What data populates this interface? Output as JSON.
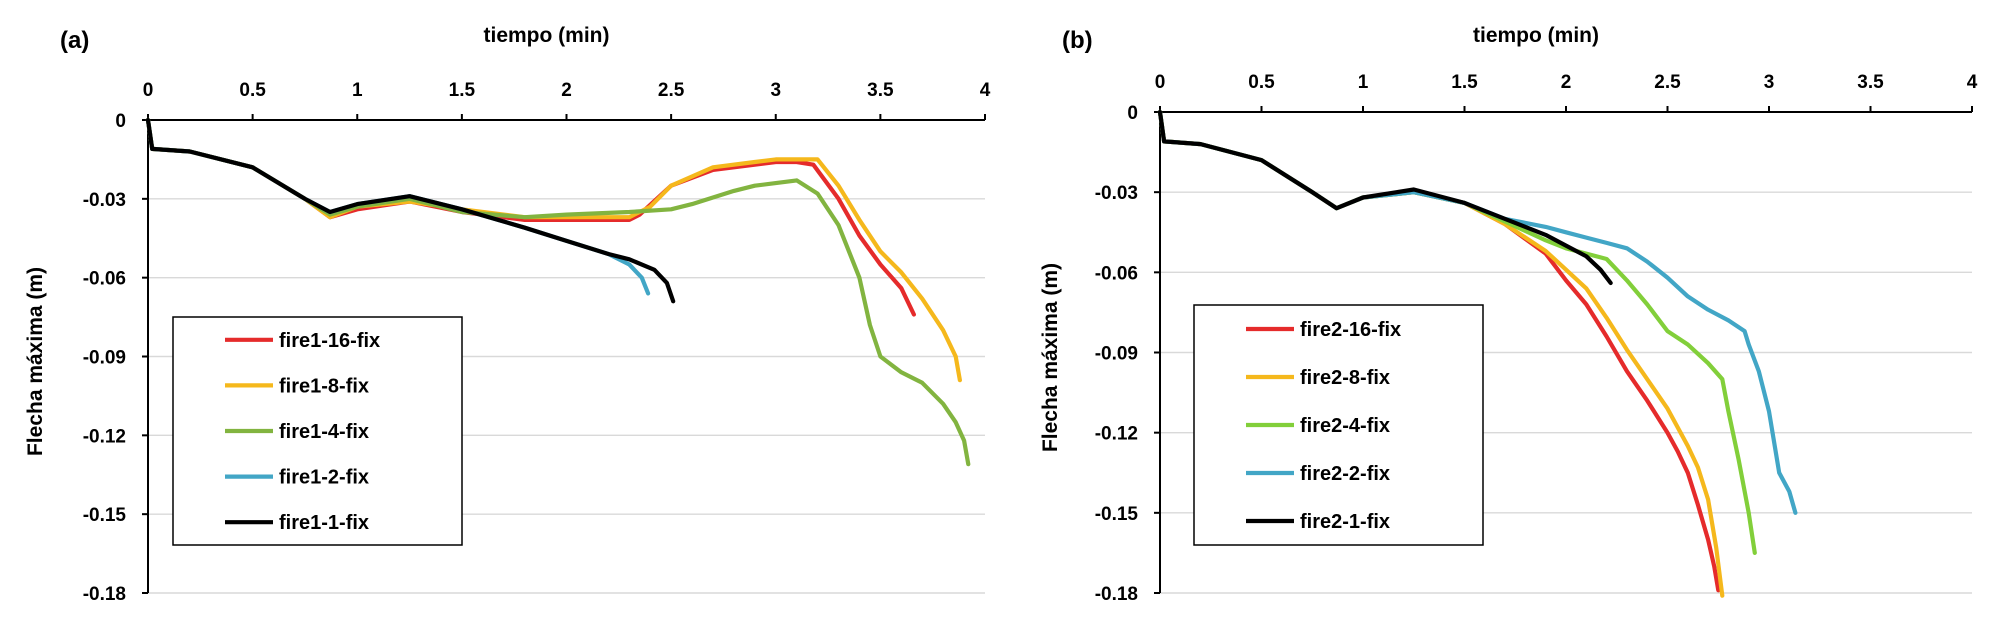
{
  "chart_data": [
    {
      "type": "line",
      "panel": "(a)",
      "xlabel": "tiempo (min)",
      "ylabel": "Flecha máxima (m)",
      "xlim": [
        0,
        4
      ],
      "ylim": [
        -0.18,
        0
      ],
      "xticks": [
        "0",
        "0.5",
        "1",
        "1.5",
        "2",
        "2.5",
        "3",
        "3.5",
        "4"
      ],
      "yticks": [
        "0",
        "-0.03",
        "-0.06",
        "-0.09",
        "-0.12",
        "-0.15",
        "-0.18"
      ],
      "grid": "horizontal",
      "legend": "bottom-left",
      "series": [
        {
          "name": "fire1-16-fix",
          "color": "#e52b2b",
          "x": [
            0,
            0.02,
            0.2,
            0.5,
            0.75,
            0.87,
            1.0,
            1.25,
            1.5,
            1.8,
            2.1,
            2.3,
            2.35,
            2.5,
            2.7,
            2.9,
            3.0,
            3.1,
            3.18,
            3.3,
            3.4,
            3.5,
            3.6,
            3.66
          ],
          "y": [
            0,
            -0.011,
            -0.012,
            -0.018,
            -0.03,
            -0.037,
            -0.034,
            -0.031,
            -0.035,
            -0.038,
            -0.038,
            -0.038,
            -0.036,
            -0.025,
            -0.019,
            -0.017,
            -0.016,
            -0.016,
            -0.017,
            -0.03,
            -0.044,
            -0.055,
            -0.064,
            -0.074
          ]
        },
        {
          "name": "fire1-8-fix",
          "color": "#f5b81c",
          "x": [
            0,
            0.02,
            0.2,
            0.5,
            0.75,
            0.87,
            1.0,
            1.25,
            1.5,
            1.8,
            2.1,
            2.3,
            2.4,
            2.5,
            2.7,
            2.9,
            3.0,
            3.1,
            3.2,
            3.3,
            3.4,
            3.5,
            3.6,
            3.7,
            3.8,
            3.86,
            3.88
          ],
          "y": [
            0,
            -0.011,
            -0.012,
            -0.018,
            -0.03,
            -0.037,
            -0.033,
            -0.031,
            -0.034,
            -0.037,
            -0.037,
            -0.037,
            -0.033,
            -0.025,
            -0.018,
            -0.016,
            -0.015,
            -0.015,
            -0.015,
            -0.025,
            -0.038,
            -0.05,
            -0.058,
            -0.068,
            -0.08,
            -0.09,
            -0.099
          ]
        },
        {
          "name": "fire1-4-fix",
          "color": "#82b440",
          "x": [
            0,
            0.02,
            0.2,
            0.5,
            0.75,
            0.87,
            1.0,
            1.25,
            1.5,
            1.8,
            2.0,
            2.3,
            2.5,
            2.6,
            2.8,
            2.9,
            3.0,
            3.1,
            3.2,
            3.3,
            3.4,
            3.45,
            3.5,
            3.6,
            3.7,
            3.8,
            3.86,
            3.9,
            3.92
          ],
          "y": [
            0,
            -0.011,
            -0.012,
            -0.018,
            -0.03,
            -0.036,
            -0.033,
            -0.03,
            -0.035,
            -0.037,
            -0.036,
            -0.035,
            -0.034,
            -0.032,
            -0.027,
            -0.025,
            -0.024,
            -0.023,
            -0.028,
            -0.04,
            -0.06,
            -0.078,
            -0.09,
            -0.096,
            -0.1,
            -0.108,
            -0.115,
            -0.122,
            -0.131
          ]
        },
        {
          "name": "fire1-2-fix",
          "color": "#42a6c6",
          "x": [
            0,
            0.02,
            0.2,
            0.5,
            0.75,
            0.87,
            1.0,
            1.25,
            1.5,
            1.8,
            2.0,
            2.2,
            2.3,
            2.36,
            2.39
          ],
          "y": [
            0,
            -0.011,
            -0.012,
            -0.018,
            -0.03,
            -0.035,
            -0.032,
            -0.029,
            -0.034,
            -0.041,
            -0.046,
            -0.051,
            -0.055,
            -0.06,
            -0.066
          ]
        },
        {
          "name": "fire1-1-fix",
          "color": "#000000",
          "x": [
            0,
            0.02,
            0.2,
            0.5,
            0.75,
            0.87,
            1.0,
            1.25,
            1.5,
            1.8,
            2.0,
            2.2,
            2.3,
            2.42,
            2.48,
            2.51
          ],
          "y": [
            0,
            -0.011,
            -0.012,
            -0.018,
            -0.03,
            -0.035,
            -0.032,
            -0.029,
            -0.034,
            -0.041,
            -0.046,
            -0.051,
            -0.053,
            -0.057,
            -0.062,
            -0.069
          ]
        }
      ]
    },
    {
      "type": "line",
      "panel": "(b)",
      "xlabel": "tiempo (min)",
      "ylabel": "Flecha máxima (m)",
      "xlim": [
        0,
        4
      ],
      "ylim": [
        -0.18,
        0
      ],
      "xticks": [
        "0",
        "0.5",
        "1",
        "1.5",
        "2",
        "2.5",
        "3",
        "3.5",
        "4"
      ],
      "yticks": [
        "0",
        "-0.03",
        "-0.06",
        "-0.09",
        "-0.12",
        "-0.15",
        "-0.18"
      ],
      "grid": "horizontal",
      "legend": "bottom-left",
      "series": [
        {
          "name": "fire2-16-fix",
          "color": "#e52b2b",
          "x": [
            0,
            0.02,
            0.2,
            0.5,
            0.75,
            0.87,
            1.0,
            1.25,
            1.5,
            1.7,
            1.9,
            2.0,
            2.1,
            2.2,
            2.3,
            2.4,
            2.5,
            2.55,
            2.6,
            2.65,
            2.7,
            2.73,
            2.75
          ],
          "y": [
            0,
            -0.011,
            -0.012,
            -0.018,
            -0.03,
            -0.036,
            -0.032,
            -0.03,
            -0.034,
            -0.042,
            -0.053,
            -0.063,
            -0.072,
            -0.084,
            -0.097,
            -0.108,
            -0.12,
            -0.127,
            -0.135,
            -0.147,
            -0.16,
            -0.17,
            -0.179
          ]
        },
        {
          "name": "fire2-8-fix",
          "color": "#f5b81c",
          "x": [
            0,
            0.02,
            0.2,
            0.5,
            0.75,
            0.87,
            1.0,
            1.25,
            1.5,
            1.7,
            1.9,
            2.0,
            2.1,
            2.2,
            2.3,
            2.4,
            2.5,
            2.6,
            2.65,
            2.7,
            2.74,
            2.77
          ],
          "y": [
            0,
            -0.011,
            -0.012,
            -0.018,
            -0.03,
            -0.036,
            -0.032,
            -0.03,
            -0.034,
            -0.042,
            -0.052,
            -0.059,
            -0.066,
            -0.077,
            -0.089,
            -0.1,
            -0.111,
            -0.125,
            -0.133,
            -0.145,
            -0.163,
            -0.181
          ]
        },
        {
          "name": "fire2-4-fix",
          "color": "#82cf3a",
          "x": [
            0,
            0.02,
            0.2,
            0.5,
            0.75,
            0.87,
            1.0,
            1.25,
            1.5,
            1.7,
            1.9,
            2.0,
            2.1,
            2.2,
            2.3,
            2.4,
            2.5,
            2.6,
            2.7,
            2.77,
            2.8,
            2.85,
            2.9,
            2.93
          ],
          "y": [
            0,
            -0.011,
            -0.012,
            -0.018,
            -0.03,
            -0.036,
            -0.032,
            -0.03,
            -0.034,
            -0.041,
            -0.048,
            -0.051,
            -0.053,
            -0.055,
            -0.063,
            -0.072,
            -0.082,
            -0.087,
            -0.094,
            -0.1,
            -0.112,
            -0.13,
            -0.15,
            -0.165
          ]
        },
        {
          "name": "fire2-2-fix",
          "color": "#42a6c6",
          "x": [
            0,
            0.02,
            0.2,
            0.5,
            0.75,
            0.87,
            1.0,
            1.25,
            1.5,
            1.7,
            1.9,
            2.0,
            2.1,
            2.2,
            2.3,
            2.4,
            2.5,
            2.6,
            2.7,
            2.8,
            2.88,
            2.9,
            2.95,
            3.0,
            3.05,
            3.1,
            3.13
          ],
          "y": [
            0,
            -0.011,
            -0.012,
            -0.018,
            -0.03,
            -0.036,
            -0.032,
            -0.03,
            -0.034,
            -0.04,
            -0.043,
            -0.045,
            -0.047,
            -0.049,
            -0.051,
            -0.056,
            -0.062,
            -0.069,
            -0.074,
            -0.078,
            -0.082,
            -0.087,
            -0.097,
            -0.112,
            -0.135,
            -0.142,
            -0.15
          ]
        },
        {
          "name": "fire2-1-fix",
          "color": "#000000",
          "x": [
            0,
            0.02,
            0.2,
            0.5,
            0.75,
            0.87,
            1.0,
            1.25,
            1.5,
            1.7,
            1.9,
            2.0,
            2.1,
            2.17,
            2.22
          ],
          "y": [
            0,
            -0.011,
            -0.012,
            -0.018,
            -0.03,
            -0.036,
            -0.032,
            -0.029,
            -0.034,
            -0.04,
            -0.046,
            -0.05,
            -0.054,
            -0.059,
            -0.064
          ]
        }
      ]
    }
  ]
}
